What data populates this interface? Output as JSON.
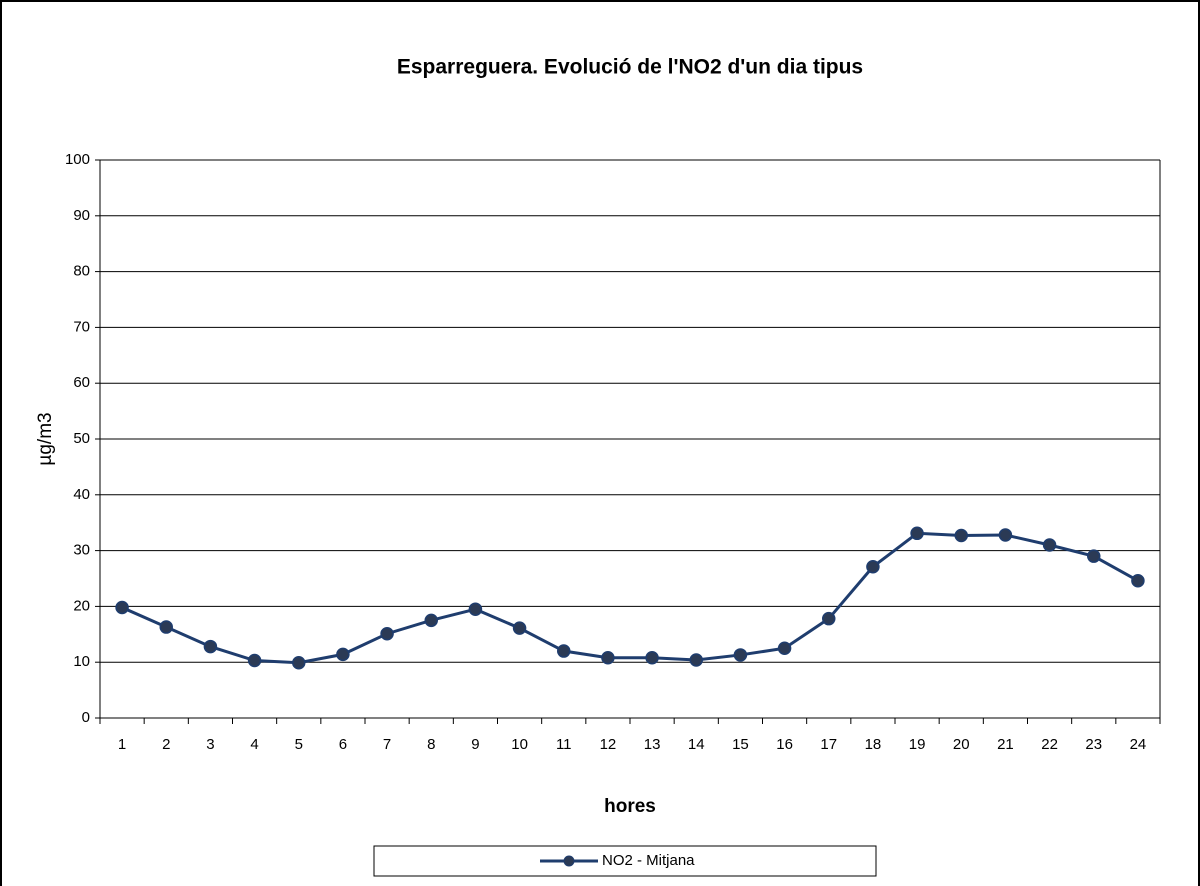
{
  "chart_data": {
    "type": "line",
    "title": "Esparreguera. Evolució de l'NO2 d'un dia tipus",
    "x_label": "hores",
    "y_label": "µg/m3",
    "categories": [
      "1",
      "2",
      "3",
      "4",
      "5",
      "6",
      "7",
      "8",
      "9",
      "10",
      "11",
      "12",
      "13",
      "14",
      "15",
      "16",
      "17",
      "18",
      "19",
      "20",
      "21",
      "22",
      "23",
      "24"
    ],
    "series": [
      {
        "name": "NO2 - Mitjana",
        "color": "#1f3d6e",
        "values": [
          19.8,
          16.3,
          12.8,
          10.3,
          9.9,
          11.4,
          15.1,
          17.5,
          19.5,
          16.1,
          12.0,
          10.8,
          10.8,
          10.4,
          11.3,
          12.5,
          17.8,
          27.1,
          33.1,
          32.7,
          32.8,
          31.0,
          29.0,
          24.6
        ]
      }
    ],
    "ylim": [
      0,
      100
    ],
    "yticks": [
      0,
      10,
      20,
      30,
      40,
      50,
      60,
      70,
      80,
      90,
      100
    ],
    "grid": true,
    "legend": "bottom"
  }
}
